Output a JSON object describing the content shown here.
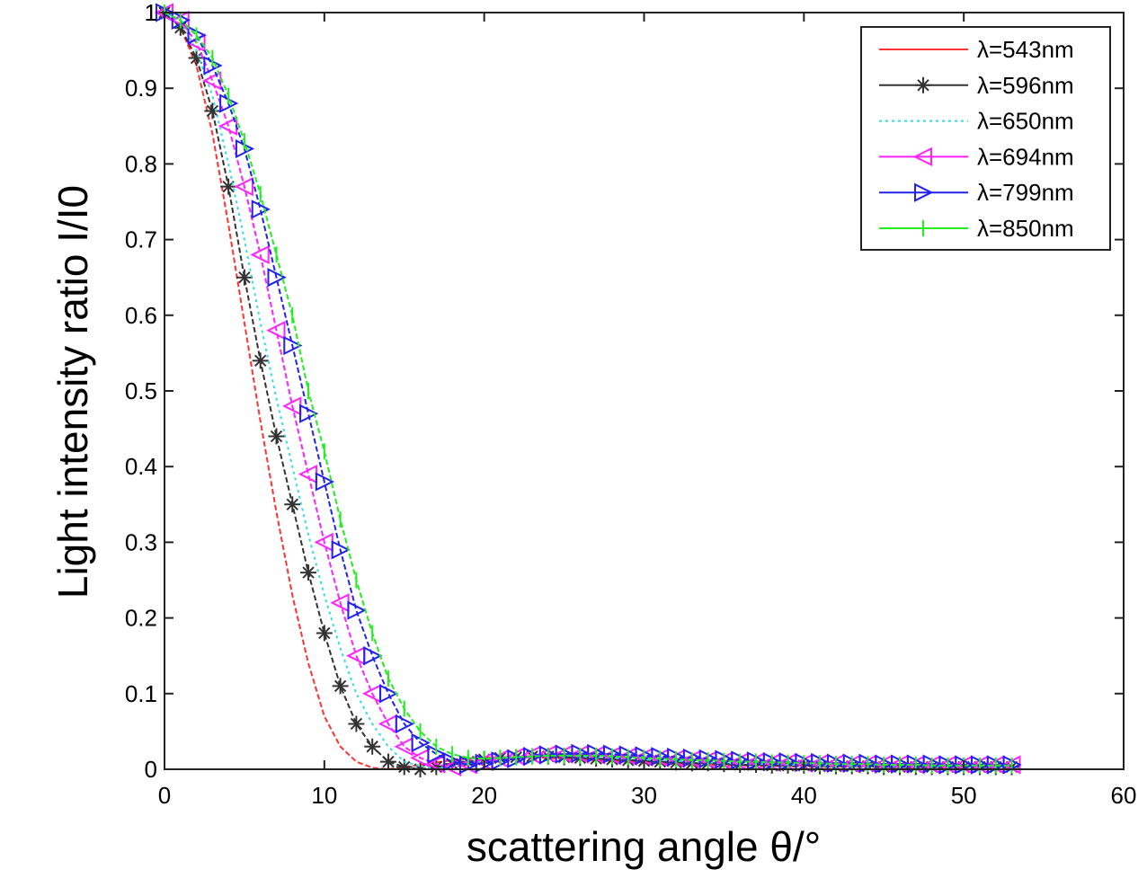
{
  "chart_data": {
    "type": "line",
    "title": "",
    "xlabel": "scattering angle θ/°",
    "ylabel": "Light intensity ratio I/I0",
    "xlim": [
      0,
      60
    ],
    "ylim": [
      0,
      1
    ],
    "xticks": [
      "0",
      "10",
      "20",
      "30",
      "40",
      "50",
      "60"
    ],
    "yticks": [
      "0",
      "0.1",
      "0.2",
      "0.3",
      "0.4",
      "0.5",
      "0.6",
      "0.7",
      "0.8",
      "0.9",
      "1"
    ],
    "grid": false,
    "legend_position": "top-right",
    "x": [
      0,
      1,
      2,
      3,
      4,
      5,
      6,
      7,
      8,
      9,
      10,
      11,
      12,
      13,
      14,
      15,
      16,
      17,
      18,
      19,
      20,
      21,
      22,
      23,
      24,
      25,
      26,
      27,
      28,
      29,
      30,
      31,
      32,
      33,
      34,
      35,
      36,
      37,
      38,
      39,
      40,
      41,
      42,
      43,
      44,
      45,
      46,
      47,
      48,
      49,
      50,
      51,
      52,
      53
    ],
    "series": [
      {
        "name": "λ=543nm",
        "color": "#ff3333",
        "marker": "none",
        "linestyle": "solid",
        "values": [
          1,
          0.98,
          0.93,
          0.84,
          0.72,
          0.59,
          0.46,
          0.34,
          0.23,
          0.14,
          0.07,
          0.03,
          0.01,
          0.002,
          0,
          0.003,
          0.006,
          0.009,
          0.012,
          0.014,
          0.015,
          0.016,
          0.016,
          0.016,
          0.015,
          0.014,
          0.013,
          0.012,
          0.011,
          0.01,
          0.009,
          0.008,
          0.007,
          0.006,
          0.006,
          0.005,
          0.005,
          0.004,
          0.004,
          0.004,
          0.003,
          0.003,
          0.003,
          0.003,
          0.003,
          0.002,
          0.002,
          0.002,
          0.002,
          0.002,
          0.002,
          0.002,
          0.002,
          0.002
        ]
      },
      {
        "name": "λ=596nm",
        "color": "#333333",
        "marker": "star",
        "linestyle": "solid",
        "values": [
          1,
          0.98,
          0.94,
          0.87,
          0.77,
          0.65,
          0.54,
          0.44,
          0.35,
          0.26,
          0.18,
          0.11,
          0.06,
          0.03,
          0.01,
          0.003,
          0,
          0.003,
          0.007,
          0.01,
          0.013,
          0.015,
          0.016,
          0.017,
          0.017,
          0.016,
          0.015,
          0.014,
          0.013,
          0.012,
          0.011,
          0.01,
          0.009,
          0.008,
          0.008,
          0.007,
          0.006,
          0.006,
          0.005,
          0.005,
          0.005,
          0.004,
          0.004,
          0.004,
          0.004,
          0.003,
          0.003,
          0.003,
          0.003,
          0.003,
          0.003,
          0.003,
          0.003,
          0.003
        ]
      },
      {
        "name": "λ=650nm",
        "color": "#33dddd",
        "marker": "none",
        "linestyle": "dotted",
        "values": [
          1,
          0.99,
          0.95,
          0.89,
          0.8,
          0.7,
          0.59,
          0.49,
          0.4,
          0.31,
          0.23,
          0.16,
          0.1,
          0.06,
          0.03,
          0.01,
          0.004,
          0.001,
          0.004,
          0.008,
          0.011,
          0.014,
          0.016,
          0.017,
          0.018,
          0.018,
          0.017,
          0.016,
          0.015,
          0.014,
          0.013,
          0.012,
          0.011,
          0.01,
          0.009,
          0.008,
          0.008,
          0.007,
          0.007,
          0.006,
          0.006,
          0.005,
          0.005,
          0.005,
          0.004,
          0.004,
          0.004,
          0.004,
          0.004,
          0.004,
          0.003,
          0.003,
          0.003,
          0.003
        ]
      },
      {
        "name": "λ=694nm",
        "color": "#ff22ff",
        "marker": "triangle-left",
        "linestyle": "solid",
        "values": [
          1,
          0.99,
          0.96,
          0.91,
          0.85,
          0.77,
          0.68,
          0.58,
          0.48,
          0.39,
          0.3,
          0.22,
          0.15,
          0.1,
          0.06,
          0.03,
          0.015,
          0.007,
          0.003,
          0.006,
          0.01,
          0.014,
          0.017,
          0.019,
          0.02,
          0.02,
          0.02,
          0.019,
          0.018,
          0.017,
          0.016,
          0.015,
          0.014,
          0.013,
          0.012,
          0.011,
          0.01,
          0.01,
          0.009,
          0.009,
          0.008,
          0.008,
          0.008,
          0.007,
          0.007,
          0.007,
          0.007,
          0.006,
          0.006,
          0.006,
          0.006,
          0.006,
          0.006,
          0.006
        ]
      },
      {
        "name": "λ=799nm",
        "color": "#2222ee",
        "marker": "triangle-right",
        "linestyle": "solid",
        "values": [
          1,
          0.99,
          0.97,
          0.93,
          0.88,
          0.82,
          0.74,
          0.65,
          0.56,
          0.47,
          0.38,
          0.29,
          0.21,
          0.15,
          0.1,
          0.06,
          0.035,
          0.02,
          0.01,
          0.006,
          0.008,
          0.011,
          0.014,
          0.017,
          0.019,
          0.02,
          0.021,
          0.021,
          0.02,
          0.019,
          0.018,
          0.017,
          0.016,
          0.015,
          0.014,
          0.013,
          0.012,
          0.011,
          0.01,
          0.01,
          0.009,
          0.009,
          0.008,
          0.008,
          0.008,
          0.007,
          0.007,
          0.007,
          0.007,
          0.006,
          0.006,
          0.006,
          0.006,
          0.006
        ]
      },
      {
        "name": "λ=850nm",
        "color": "#22ee22",
        "marker": "vline",
        "linestyle": "solid",
        "values": [
          1,
          0.99,
          0.97,
          0.94,
          0.89,
          0.83,
          0.76,
          0.68,
          0.6,
          0.5,
          0.42,
          0.33,
          0.25,
          0.18,
          0.12,
          0.08,
          0.05,
          0.03,
          0.02,
          0.015,
          0.014,
          0.015,
          0.016,
          0.017,
          0.018,
          0.018,
          0.018,
          0.018,
          0.017,
          0.016,
          0.015,
          0.014,
          0.013,
          0.012,
          0.012,
          0.011,
          0.01,
          0.01,
          0.009,
          0.009,
          0.008,
          0.008,
          0.007,
          0.007,
          0.007,
          0.006,
          0.006,
          0.006,
          0.005,
          0.005,
          0.005,
          0.005,
          0.005,
          0.005
        ]
      }
    ]
  }
}
